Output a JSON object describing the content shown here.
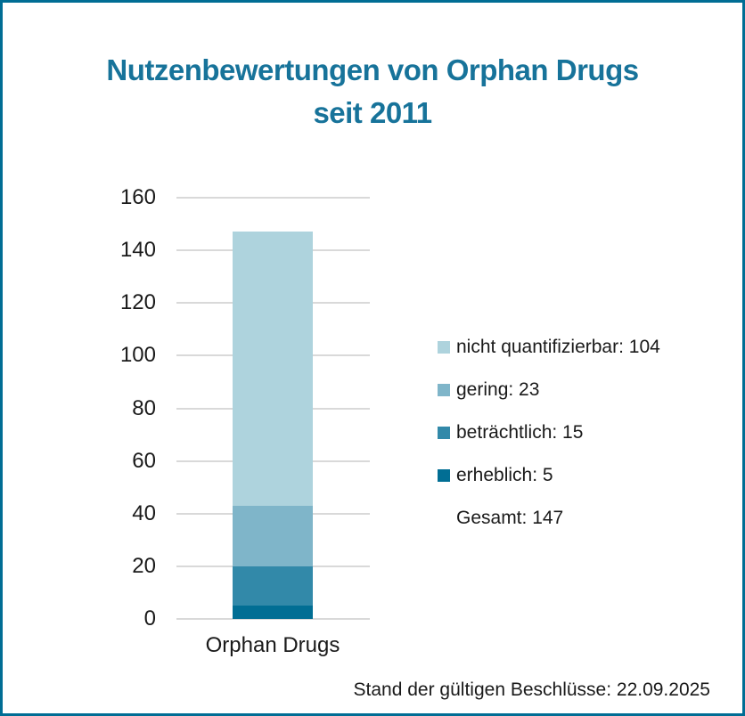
{
  "frame": {
    "border_color": "#006d94",
    "background_color": "#ffffff"
  },
  "title": {
    "line1": "Nutzenbewertungen von Orphan Drugs",
    "line2": "seit 2011",
    "color": "#17739a"
  },
  "footer": {
    "text": "Stand der gültigen Beschlüsse: 22.09.2025"
  },
  "chart_data": {
    "type": "bar",
    "stacked": true,
    "title": "Nutzenbewertungen von Orphan Drugs seit 2011",
    "categories": [
      "Orphan Drugs"
    ],
    "series": [
      {
        "name": "erheblich",
        "values": [
          5
        ],
        "color": "#016e94"
      },
      {
        "name": "beträchtlich",
        "values": [
          15
        ],
        "color": "#3289a9"
      },
      {
        "name": "gering",
        "values": [
          23
        ],
        "color": "#7fb5c9"
      },
      {
        "name": "nicht quantifizierbar",
        "values": [
          104
        ],
        "color": "#aed3dd"
      }
    ],
    "legend": [
      {
        "label": "nicht quantifizierbar: 104",
        "color": "#aed3dd"
      },
      {
        "label": "gering: 23",
        "color": "#7fb5c9"
      },
      {
        "label": "beträchtlich: 15",
        "color": "#3289a9"
      },
      {
        "label": "erheblich: 5",
        "color": "#016e94"
      },
      {
        "label": "Gesamt: 147",
        "color": null
      }
    ],
    "total": 147,
    "xlabel": "",
    "ylabel": "",
    "ylim": [
      0,
      160
    ],
    "yticks": [
      0,
      20,
      40,
      60,
      80,
      100,
      120,
      140,
      160
    ],
    "grid": true,
    "gridline_color": "#d9d9d9",
    "legend_position": "right"
  }
}
